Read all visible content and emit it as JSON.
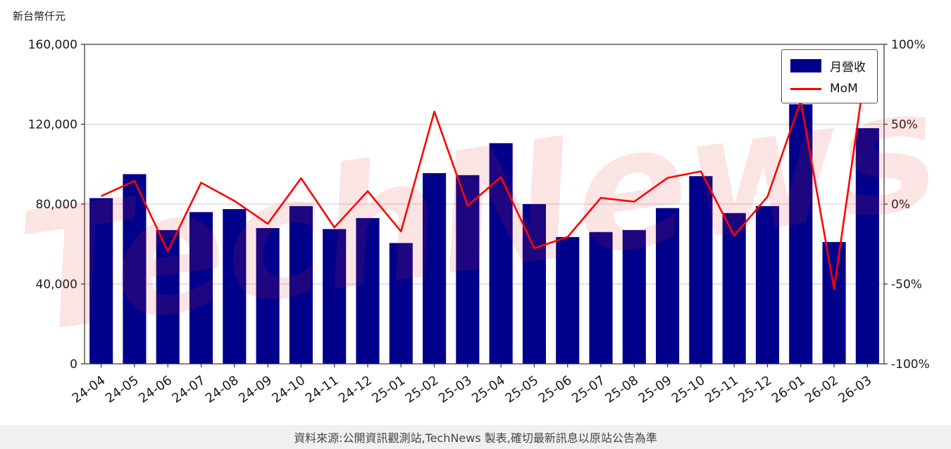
{
  "header": {
    "unit_label": "新台幣仟元"
  },
  "watermark": {
    "text": "TechNews"
  },
  "footer": {
    "text": "資料來源:公開資訊觀測站,TechNews 製表,確切最新訊息以原站公告為準"
  },
  "legend": {
    "items": [
      {
        "label": "月營收",
        "type": "bar",
        "color": "#00008B"
      },
      {
        "label": "MoM",
        "type": "line",
        "color": "#FF0000"
      }
    ]
  },
  "chart_data": {
    "type": "bar",
    "title": "",
    "categories": [
      "24-04",
      "24-05",
      "24-06",
      "24-07",
      "24-08",
      "24-09",
      "24-10",
      "24-11",
      "24-12",
      "25-01",
      "25-02",
      "25-03",
      "25-04",
      "25-05",
      "25-06",
      "25-07",
      "25-08",
      "25-09",
      "25-10",
      "25-11",
      "25-12",
      "26-01",
      "26-02",
      "26-03"
    ],
    "series": [
      {
        "name": "月營收",
        "type": "bar",
        "axis": "left",
        "color": "#00008B",
        "values": [
          83000,
          95000,
          67000,
          76000,
          77500,
          68000,
          79000,
          67500,
          73000,
          60500,
          95500,
          94500,
          110500,
          80000,
          63500,
          66000,
          67000,
          78000,
          94000,
          75500,
          79000,
          130000,
          61000,
          118000
        ]
      },
      {
        "name": "MoM",
        "type": "line",
        "axis": "right",
        "color": "#FF0000",
        "values": [
          5.0,
          14.5,
          -29.5,
          13.4,
          2.0,
          -12.3,
          16.2,
          -14.6,
          8.1,
          -17.1,
          57.9,
          -1.0,
          16.9,
          -27.6,
          -20.6,
          3.9,
          1.5,
          16.4,
          20.5,
          -19.7,
          4.6,
          64.6,
          -53.1,
          93.4
        ]
      }
    ],
    "left_axis": {
      "label": "新台幣仟元",
      "min": 0,
      "max": 160000,
      "ticks": [
        0,
        40000,
        80000,
        120000,
        160000
      ],
      "tick_labels": [
        "0",
        "40,000",
        "80,000",
        "120,000",
        "160,000"
      ]
    },
    "right_axis": {
      "min": -100,
      "max": 100,
      "ticks": [
        -100,
        -50,
        0,
        50,
        100
      ],
      "tick_labels": [
        "-100%",
        "-50%",
        "0%",
        "50%",
        "100%"
      ]
    },
    "grid": true,
    "legend_position": "top-right"
  }
}
